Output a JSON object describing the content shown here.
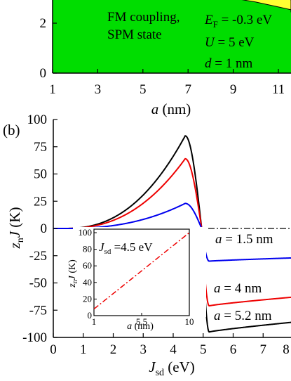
{
  "chart_data": [
    {
      "type": "area",
      "panel_label": "",
      "xlabel_var": "a",
      "xlabel_unit": " (nm)",
      "xlim": [
        1,
        12
      ],
      "ylim": [
        0,
        3
      ],
      "xticks": [
        1,
        3,
        5,
        7,
        9,
        11
      ],
      "yticks": [
        0,
        2
      ],
      "regions": [
        {
          "name": "FM coupling",
          "color": "#00dd00"
        },
        {
          "name": "",
          "color": "#ffff33"
        }
      ],
      "boundary": [
        [
          9,
          3.0
        ],
        [
          10,
          2.85
        ],
        [
          11,
          2.65
        ],
        [
          12,
          2.45
        ]
      ],
      "annotations": {
        "state_line1": "FM coupling,",
        "state_line2": "SPM state",
        "ef_var": "E",
        "ef_sub": "F",
        "ef_rest": " = -0.3 eV",
        "u_var": "U",
        "u_rest": " = 5 eV",
        "d_var": "d",
        "d_rest": " = 1 nm"
      }
    },
    {
      "type": "line",
      "panel_label": "(b)",
      "xlabel_var": "J",
      "xlabel_sub": "sd",
      "xlabel_unit": " (eV)",
      "ylabel_var1": "z",
      "ylabel_sub": "n",
      "ylabel_var2": "J",
      "ylabel_unit": " (K)",
      "xlim": [
        0,
        8
      ],
      "ylim": [
        -100,
        100
      ],
      "xticks": [
        0,
        1,
        2,
        3,
        4,
        5,
        6,
        7,
        8
      ],
      "yticks": [
        -100,
        -75,
        -50,
        -25,
        0,
        25,
        50,
        75,
        100
      ],
      "series": [
        {
          "name": "a = 5.2 nm",
          "color": "#000000",
          "amplitude": 85,
          "min": -95,
          "tail_end": -86
        },
        {
          "name": "a = 4 nm",
          "color": "#ee0000",
          "amplitude": 64,
          "min": -71,
          "tail_end": -63
        },
        {
          "name": "a = 1.5 nm",
          "color": "#0000ee",
          "amplitude": 23,
          "min": -30,
          "tail_end": -27
        }
      ],
      "series_labels": [
        {
          "var": "a",
          "rest": " = 1.5 nm"
        },
        {
          "var": "a",
          "rest": " = 4 nm"
        },
        {
          "var": "a",
          "rest": " = 5.2 nm"
        }
      ],
      "peak_x": 4.4,
      "zero_x": 4.95,
      "min_x": 5.2,
      "zero_line": "dash-dot",
      "inset": {
        "type": "line",
        "xlabel_var": "a",
        "xlabel_unit": " (nm)",
        "ylabel_var1": "z",
        "ylabel_sub": "n",
        "ylabel_var2": "J",
        "ylabel_unit": " (K)",
        "annotation_var": "J",
        "annotation_sub": "sd",
        "annotation_rest": " =4.5 eV",
        "xlim": [
          1,
          10
        ],
        "ylim": [
          0,
          100
        ],
        "xticks": [
          "1",
          "5.5",
          "10"
        ],
        "yticks": [
          0,
          20,
          40,
          60,
          80,
          100
        ],
        "x": [
          1,
          10
        ],
        "y": [
          8,
          100
        ],
        "line_color": "#ee0000",
        "line_style": "dash-dot"
      }
    }
  ]
}
